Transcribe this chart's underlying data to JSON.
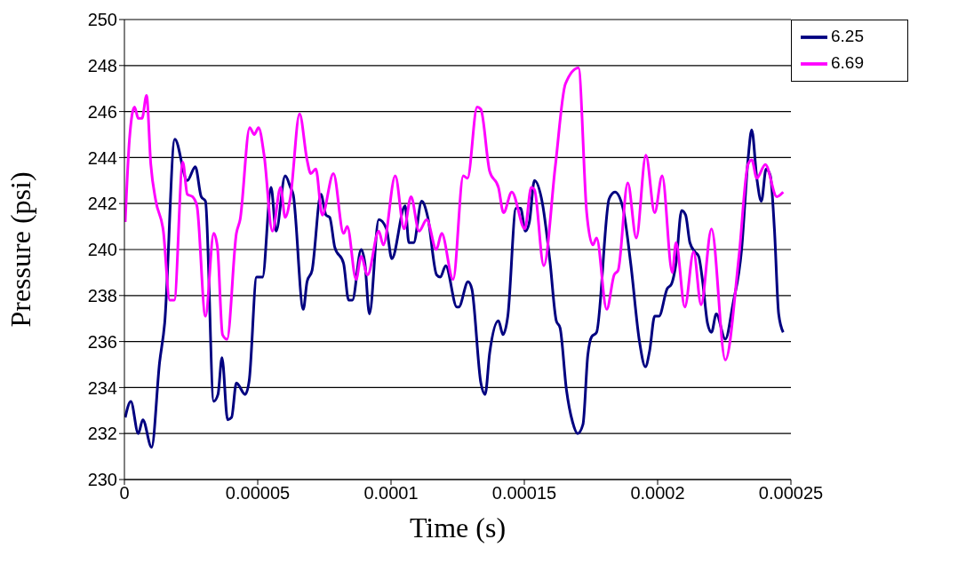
{
  "chart_data": {
    "type": "line",
    "xlabel": "Time (s)",
    "ylabel": "Pressure (psi)",
    "xlim": [
      0,
      0.00025
    ],
    "xticks": [
      0,
      {
        "value": 5e-05,
        "label": "0.00005"
      },
      0.0001,
      0.00015,
      0.0002,
      0.00025
    ],
    "ylim": [
      230,
      250
    ],
    "yticks": [
      230,
      232,
      234,
      236,
      238,
      240,
      242,
      244,
      246,
      248,
      250
    ],
    "grid": "y",
    "legend": "top right",
    "marker": "none",
    "line_style": "solid",
    "series": [
      {
        "name": "6.25",
        "color": "#000080",
        "x": [
          3e-07,
          2.4e-06,
          5.2e-06,
          6.9e-06,
          1.02e-05,
          1.32e-05,
          1.51e-05,
          1.89e-05,
          2.36e-05,
          2.66e-05,
          2.88e-05,
          3.04e-05,
          3.35e-05,
          3.51e-05,
          3.66e-05,
          3.87e-05,
          4.02e-05,
          4.2e-05,
          4.53e-05,
          4.68e-05,
          4.96e-05,
          5.18e-05,
          5.5e-05,
          5.69e-05,
          6.03e-05,
          6.23e-05,
          6.33e-05,
          6.71e-05,
          6.85e-05,
          7.04e-05,
          7.37e-05,
          7.56e-05,
          7.7e-05,
          7.89e-05,
          8.22e-05,
          8.41e-05,
          8.55e-05,
          8.88e-05,
          9.02e-05,
          9.19e-05,
          9.54e-05,
          9.83e-05,
          0.0001003,
          0.0001053,
          0.0001067,
          0.0001085,
          0.0001115,
          0.0001138,
          0.0001171,
          0.0001185,
          0.0001205,
          0.0001247,
          0.0001254,
          0.0001289,
          0.0001303,
          0.0001337,
          0.0001353,
          0.000137,
          0.0001403,
          0.000142,
          0.0001438,
          0.0001469,
          0.0001486,
          0.0001504,
          0.0001519,
          0.0001538,
          0.0001568,
          0.0001596,
          0.000162,
          0.0001634,
          0.0001658,
          0.0001681,
          0.00017,
          0.000172,
          0.0001738,
          0.0001752,
          0.0001771,
          0.0001818,
          0.000184,
          0.000187,
          0.0001899,
          0.0001932,
          0.0001954,
          0.000197,
          0.0001989,
          0.0002005,
          0.0002036,
          0.0002052,
          0.0002069,
          0.000209,
          0.0002105,
          0.0002121,
          0.000214,
          0.0002154,
          0.0002169,
          0.0002187,
          0.0002202,
          0.000222,
          0.0002254,
          0.0002282,
          0.0002315,
          0.0002339,
          0.0002353,
          0.0002372,
          0.0002389,
          0.0002407,
          0.0002423,
          0.0002438,
          0.0002454,
          0.0002471
        ],
        "values": [
          232.7,
          233.4,
          232.0,
          232.6,
          231.4,
          235.1,
          236.8,
          244.8,
          243.0,
          243.6,
          242.3,
          242.1,
          233.4,
          233.7,
          235.3,
          232.6,
          232.7,
          234.2,
          233.7,
          234.3,
          238.8,
          238.8,
          242.7,
          240.8,
          243.2,
          242.7,
          242.4,
          237.4,
          238.6,
          239.1,
          242.4,
          241.5,
          241.4,
          240.1,
          239.4,
          237.8,
          237.8,
          240.0,
          239.4,
          237.2,
          241.3,
          240.9,
          239.6,
          241.9,
          240.3,
          240.3,
          242.1,
          241.4,
          238.9,
          238.8,
          239.3,
          237.5,
          237.5,
          238.6,
          238.3,
          234.2,
          233.7,
          235.5,
          236.9,
          236.3,
          237.1,
          241.8,
          241.8,
          240.8,
          241.2,
          243.0,
          242.0,
          239.5,
          236.9,
          236.6,
          233.9,
          232.5,
          232.0,
          232.4,
          235.4,
          236.2,
          236.4,
          242.2,
          242.5,
          241.8,
          239.4,
          236.0,
          234.9,
          235.6,
          237.1,
          237.1,
          238.3,
          238.5,
          239.4,
          241.7,
          241.5,
          240.3,
          239.9,
          239.7,
          238.6,
          236.8,
          236.4,
          237.2,
          236.1,
          237.6,
          240.0,
          243.9,
          245.2,
          243.1,
          242.1,
          243.5,
          243.2,
          240.9,
          237.2,
          236.4
        ]
      },
      {
        "name": "6.69",
        "color": "#ff00ff",
        "x": [
          3e-07,
          1.9e-06,
          3.8e-06,
          5.2e-06,
          6.6e-06,
          8.3e-06,
          9.9e-06,
          1.18e-05,
          1.46e-05,
          1.7e-05,
          1.87e-05,
          2.19e-05,
          2.36e-05,
          2.55e-05,
          2.72e-05,
          3.04e-05,
          3.35e-05,
          3.49e-05,
          3.68e-05,
          3.85e-05,
          4.2e-05,
          4.34e-05,
          4.7e-05,
          4.87e-05,
          5.03e-05,
          5.24e-05,
          5.55e-05,
          5.86e-05,
          6.03e-05,
          6.23e-05,
          6.57e-05,
          6.85e-05,
          6.99e-05,
          7.18e-05,
          7.42e-05,
          7.84e-05,
          8.22e-05,
          8.36e-05,
          8.69e-05,
          8.88e-05,
          9.12e-05,
          9.54e-05,
          9.71e-05,
          0.0001016,
          0.0001049,
          0.0001075,
          0.0001105,
          0.0001134,
          0.000117,
          0.000119,
          0.0001233,
          0.0001271,
          0.0001287,
          0.0001323,
          0.0001337,
          0.000137,
          0.0001403,
          0.0001422,
          0.0001453,
          0.0001502,
          0.0001526,
          0.0001538,
          0.0001573,
          0.0001616,
          0.0001654,
          0.0001703,
          0.0001734,
          0.0001757,
          0.0001771,
          0.0001809,
          0.0001837,
          0.0001852,
          0.0001888,
          0.000192,
          0.0001956,
          0.0001989,
          0.0002017,
          0.0002055,
          0.0002069,
          0.0002102,
          0.0002135,
          0.0002163,
          0.0002202,
          0.0002254,
          0.0002305,
          0.0002339,
          0.0002353,
          0.0002372,
          0.0002404,
          0.0002447,
          0.0002471
        ],
        "values": [
          241.2,
          244.8,
          246.2,
          245.7,
          245.7,
          246.7,
          243.7,
          242.1,
          240.8,
          237.8,
          237.8,
          243.8,
          242.4,
          242.3,
          241.9,
          237.1,
          240.7,
          240.1,
          236.3,
          236.1,
          240.7,
          241.3,
          245.3,
          245.0,
          245.3,
          244.1,
          240.8,
          242.7,
          241.4,
          242.3,
          245.9,
          243.9,
          243.3,
          243.5,
          241.5,
          243.3,
          240.7,
          241.0,
          238.7,
          239.7,
          238.9,
          240.8,
          240.2,
          243.2,
          240.9,
          242.3,
          240.8,
          241.3,
          240.0,
          240.7,
          238.7,
          243.2,
          243.1,
          246.2,
          246.1,
          243.4,
          242.7,
          241.6,
          242.5,
          240.9,
          242.7,
          242.6,
          239.3,
          243.6,
          247.2,
          247.9,
          241.6,
          240.2,
          240.5,
          237.4,
          238.9,
          239.1,
          242.9,
          240.5,
          244.1,
          241.6,
          243.2,
          239.0,
          240.3,
          237.5,
          239.9,
          237.6,
          240.9,
          235.2,
          239.7,
          243.7,
          243.9,
          243.1,
          243.7,
          242.3,
          242.5
        ]
      }
    ]
  }
}
